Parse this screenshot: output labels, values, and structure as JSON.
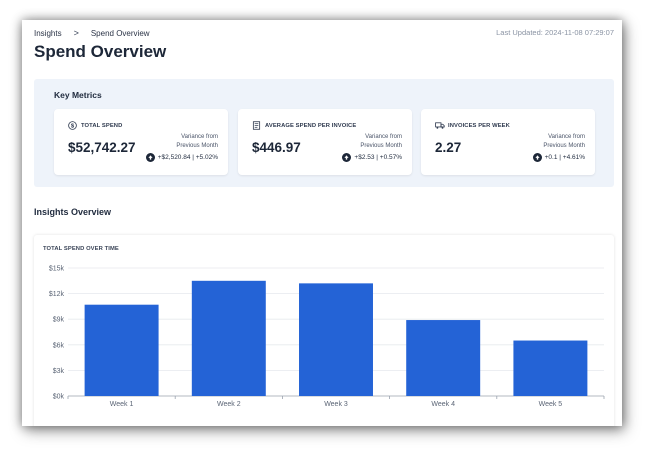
{
  "breadcrumb": {
    "parent": "Insights",
    "separator": ">",
    "current": "Spend Overview"
  },
  "last_updated": "Last Updated: 2024-11-08 07:29:07",
  "page_title": "Spend Overview",
  "key_metrics": {
    "title": "Key Metrics",
    "cards": [
      {
        "icon": "dollar-circle-icon",
        "label": "TOTAL SPEND",
        "value": "$52,742.27",
        "variance_line1": "Variance from",
        "variance_line2": "Previous Month",
        "delta": "+$2,520.84 | +5.02%"
      },
      {
        "icon": "invoice-icon",
        "label": "AVERAGE SPEND PER INVOICE",
        "value": "$446.97",
        "variance_line1": "Variance from",
        "variance_line2": "Previous Month",
        "delta": "+$2.53 | +0.57%"
      },
      {
        "icon": "truck-icon",
        "label": "INVOICES PER WEEK",
        "value": "2.27",
        "variance_line1": "Variance from",
        "variance_line2": "Previous Month",
        "delta": "+0.1 | +4.61%"
      }
    ]
  },
  "insights_overview": {
    "title": "Insights Overview",
    "chart_title": "TOTAL SPEND OVER TIME"
  },
  "colors": {
    "bar": "#2463d6",
    "panel": "#eef3fa",
    "text": "#1d2738"
  },
  "chart_data": {
    "type": "bar",
    "title": "TOTAL SPEND OVER TIME",
    "categories": [
      "Week 1",
      "Week 2",
      "Week 3",
      "Week 4",
      "Week 5"
    ],
    "values": [
      10700,
      13500,
      13200,
      8900,
      6500
    ],
    "ylim": [
      0,
      15000
    ],
    "yticks": [
      0,
      3000,
      6000,
      9000,
      12000,
      15000
    ],
    "ytick_labels": [
      "$0k",
      "$3k",
      "$6k",
      "$9k",
      "$12k",
      "$15k"
    ],
    "grid": true,
    "legend": "none"
  }
}
